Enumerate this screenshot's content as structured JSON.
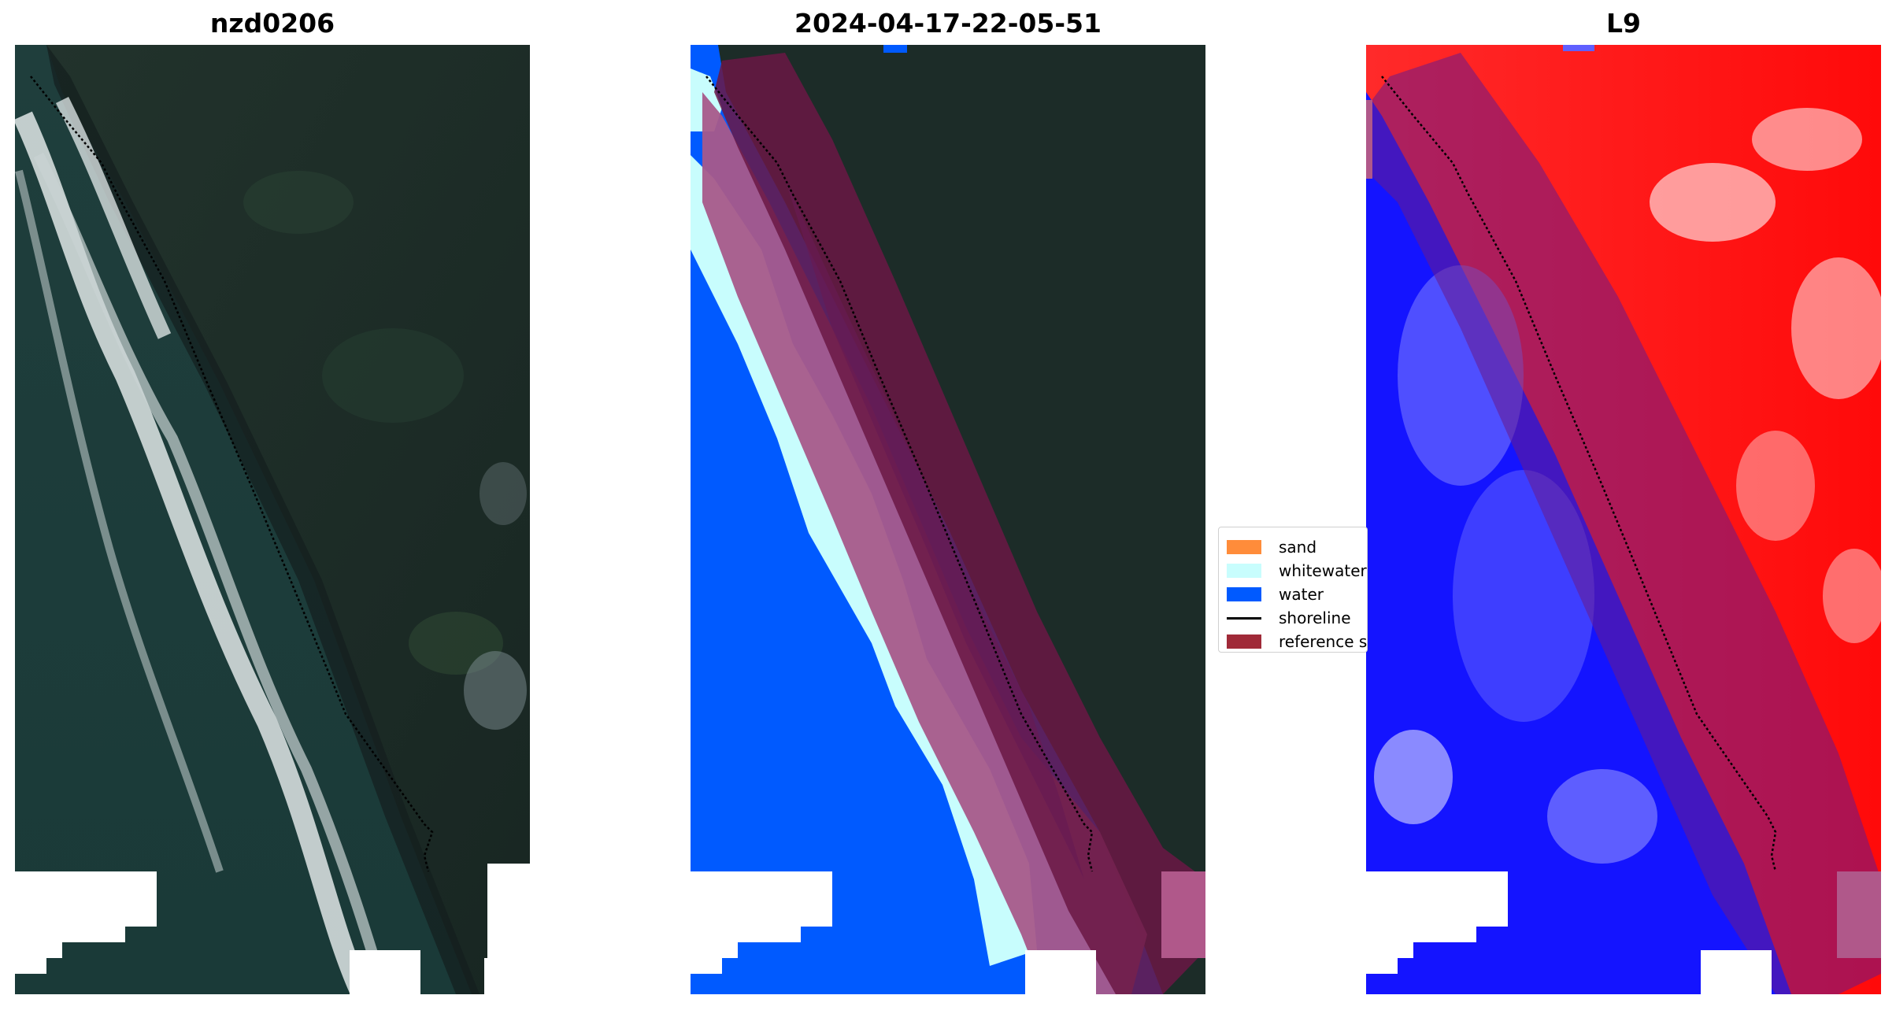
{
  "panels": [
    {
      "title": "nzd0206"
    },
    {
      "title": "2024-04-17-22-05-51"
    },
    {
      "title": "L9"
    }
  ],
  "legend": {
    "items": [
      {
        "label": "sand",
        "color": "#ff8c3a",
        "kind": "patch"
      },
      {
        "label": "whitewater",
        "color": "#c8fdfd",
        "kind": "patch"
      },
      {
        "label": "water",
        "color": "#005aff",
        "kind": "patch"
      },
      {
        "label": "shoreline",
        "color": "#000000",
        "kind": "line"
      },
      {
        "label": "reference shoreline buffer",
        "color": "#a02a38",
        "kind": "patch"
      }
    ]
  },
  "colors": {
    "land_dark": "#1b2b28",
    "sea_dark": "#1d3d3a",
    "buffer": "#9c2a50",
    "ndwi_low": "#ff0000",
    "ndwi_high": "#0000ff"
  }
}
